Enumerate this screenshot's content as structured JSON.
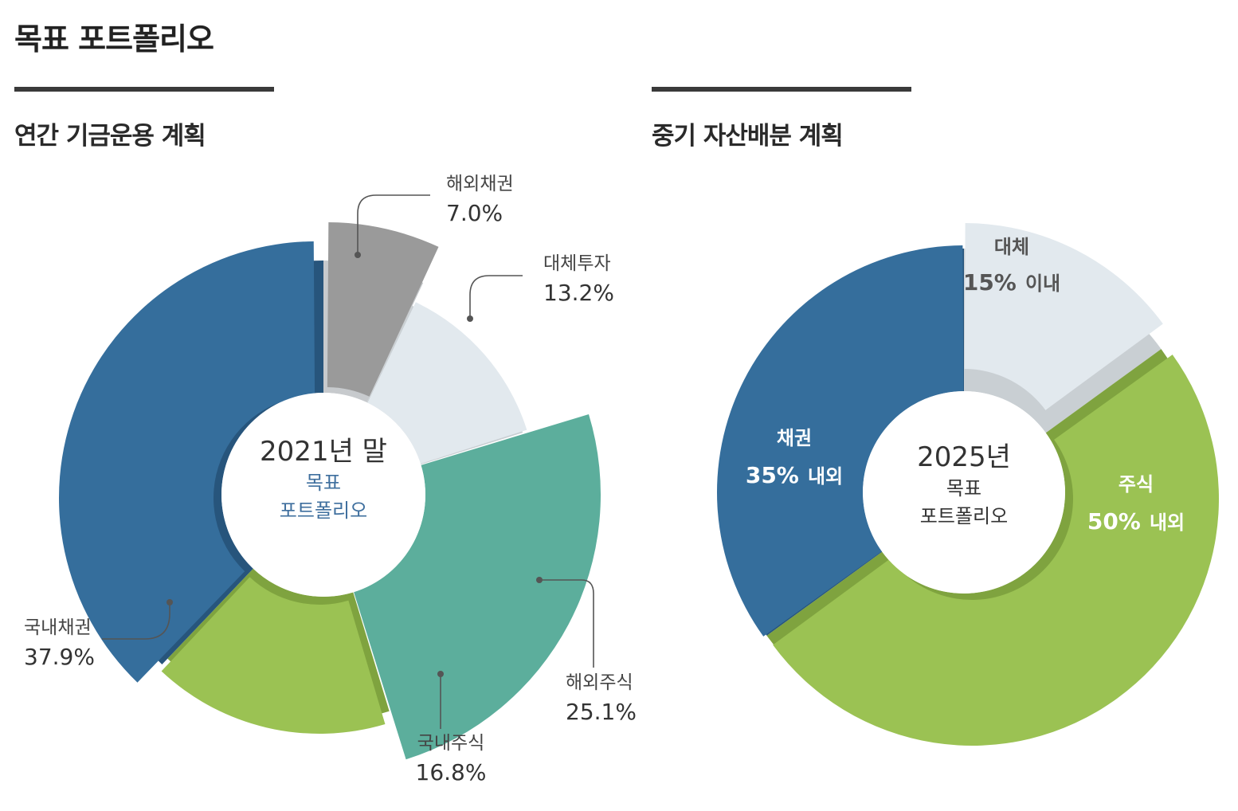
{
  "page": {
    "title": "목표 포트폴리오"
  },
  "colors": {
    "blue": "#356e9c",
    "blue_shade": "#27557c",
    "gray": "#9a9a9a",
    "gray_shade": "#c7cacd",
    "light": "#e2e9ee",
    "light_shade": "#c9cfd3",
    "teal": "#5cae9c",
    "green": "#9bc253",
    "green_shade": "#7fa33f",
    "center_blue": "#3f6f9e",
    "leader": "#555555"
  },
  "sections": [
    {
      "title": "연간 기금운용 계획"
    },
    {
      "title": "중기 자산배분 계획"
    }
  ],
  "chart_data": [
    {
      "type": "pie",
      "subtype": "exploded-donut",
      "title": "연간 기금운용 계획",
      "center": {
        "year": "2021년 말",
        "line1": "목표",
        "line2": "포트폴리오"
      },
      "series": [
        {
          "name": "해외채권",
          "value": 7.0,
          "label": "7.0%",
          "color": "gray"
        },
        {
          "name": "대체투자",
          "value": 13.2,
          "label": "13.2%",
          "color": "light"
        },
        {
          "name": "해외주식",
          "value": 25.1,
          "label": "25.1%",
          "color": "teal"
        },
        {
          "name": "국내주식",
          "value": 16.8,
          "label": "16.8%",
          "color": "green"
        },
        {
          "name": "국내채권",
          "value": 37.9,
          "label": "37.9%",
          "color": "blue"
        }
      ]
    },
    {
      "type": "pie",
      "subtype": "donut",
      "title": "중기 자산배분 계획",
      "center": {
        "year": "2025년",
        "line1": "목표",
        "line2": "포트폴리오"
      },
      "series": [
        {
          "name": "대체",
          "value": 15,
          "label": "15%",
          "suffix": "이내",
          "color": "light"
        },
        {
          "name": "주식",
          "value": 50,
          "label": "50%",
          "suffix": "내외",
          "color": "green"
        },
        {
          "name": "채권",
          "value": 35,
          "label": "35%",
          "suffix": "내외",
          "color": "blue"
        }
      ]
    }
  ]
}
